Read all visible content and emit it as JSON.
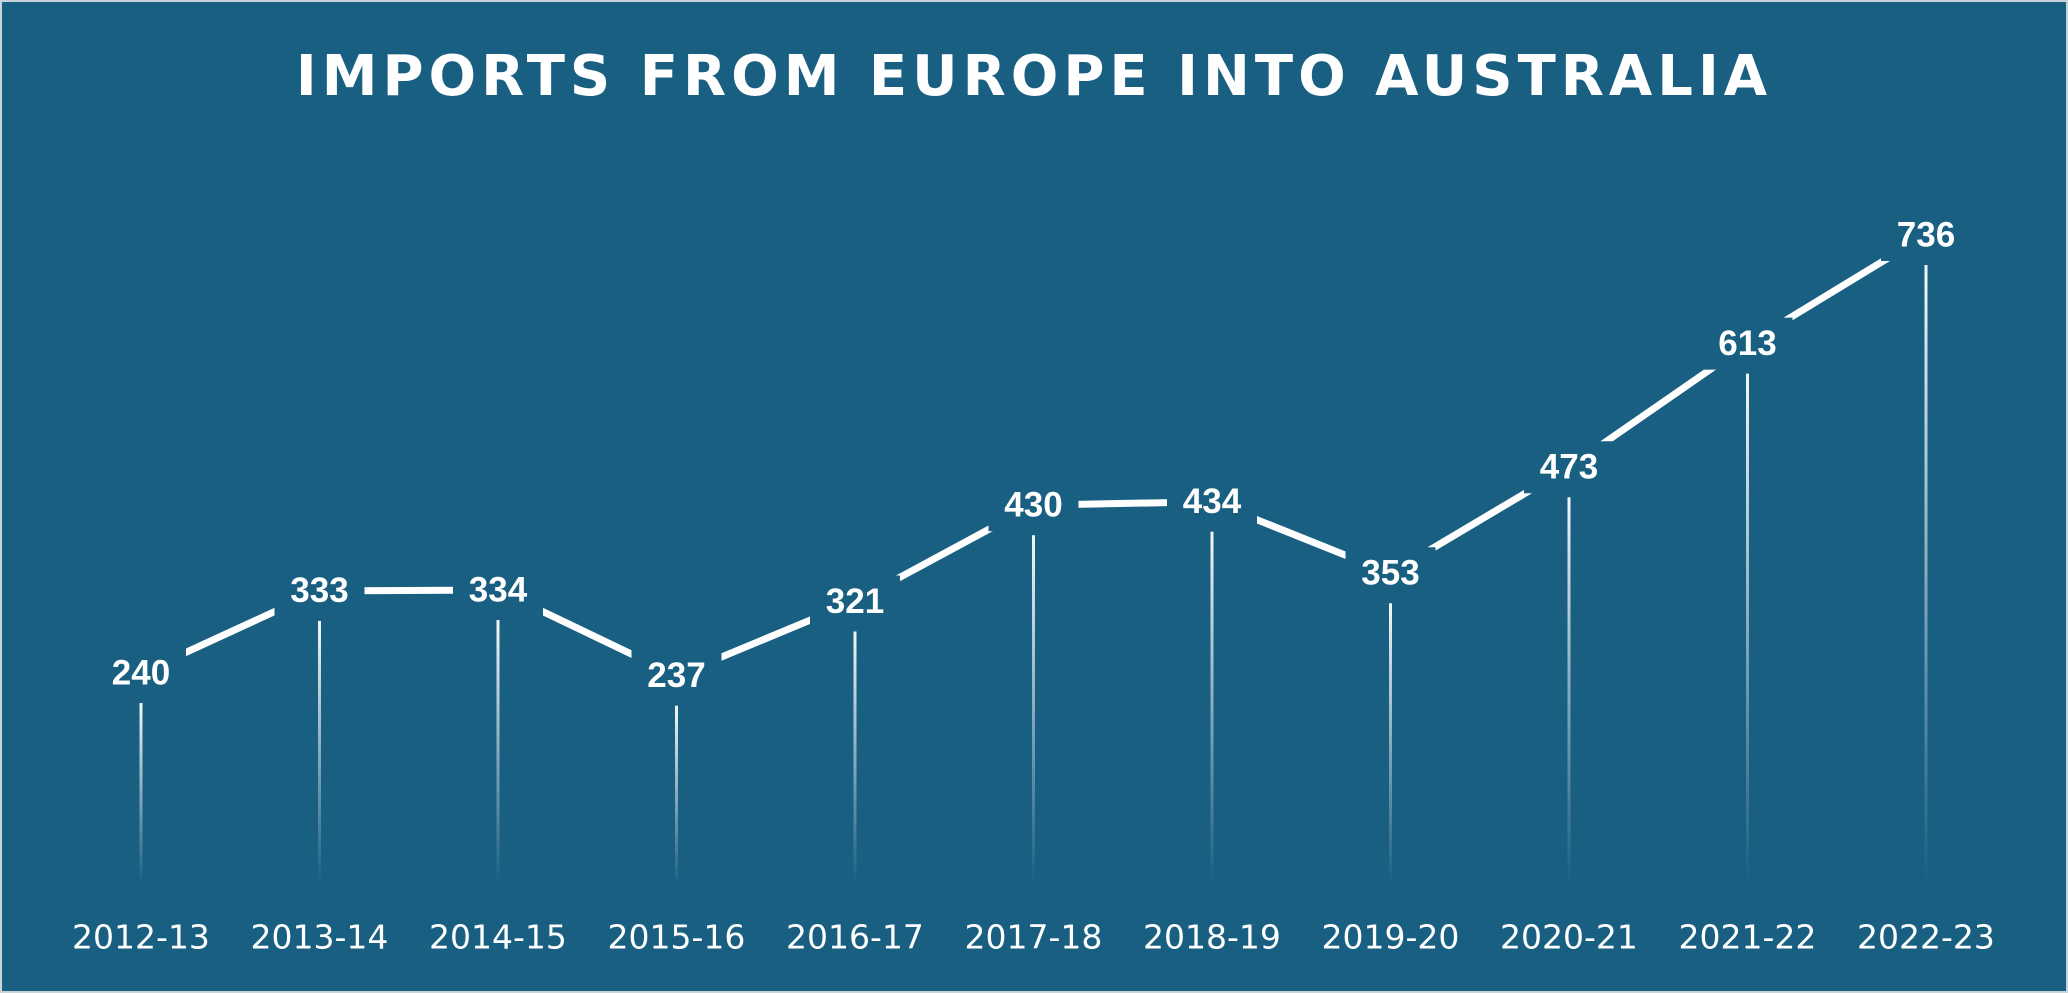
{
  "chart_data": {
    "type": "line",
    "title": "IMPORTS FROM EUROPE INTO AUSTRALIA",
    "categories": [
      "2012-13",
      "2013-14",
      "2014-15",
      "2015-16",
      "2016-17",
      "2017-18",
      "2018-19",
      "2019-20",
      "2020-21",
      "2021-22",
      "2022-23"
    ],
    "values": [
      240,
      333,
      334,
      237,
      321,
      430,
      434,
      353,
      473,
      613,
      736
    ],
    "color": "#ffffff"
  }
}
